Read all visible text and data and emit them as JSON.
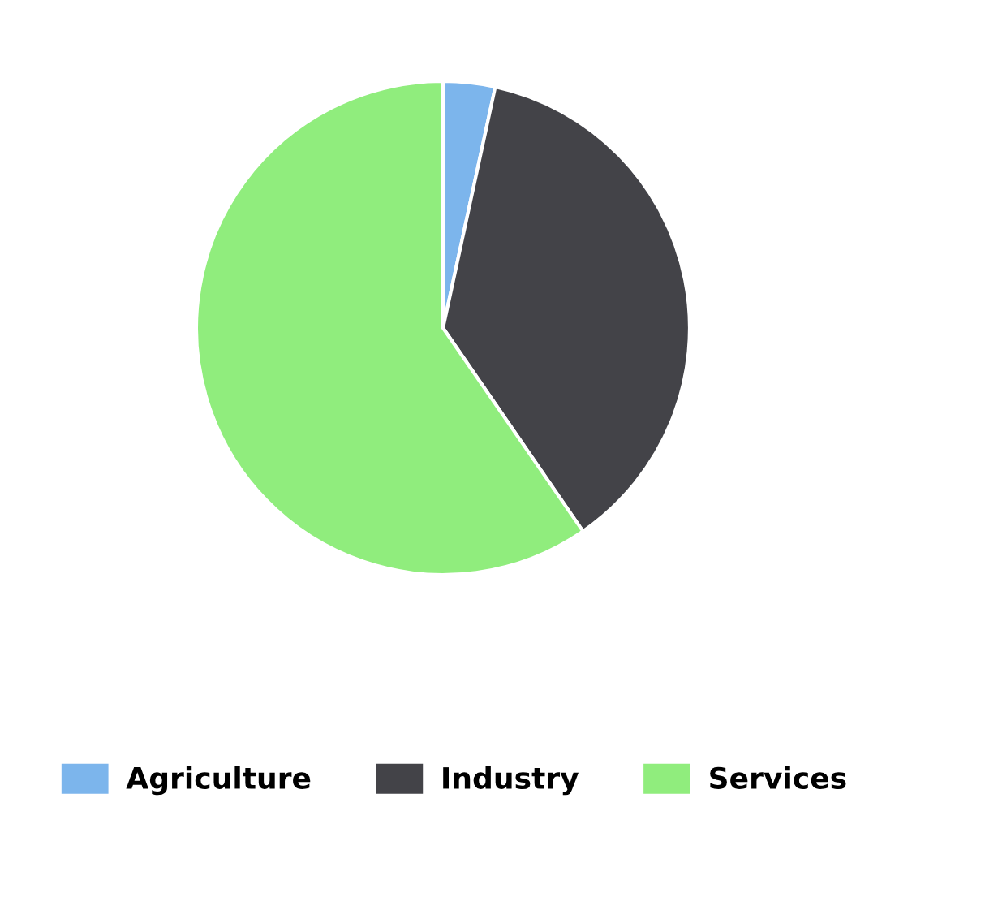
{
  "chart_data": {
    "type": "pie",
    "categories": [
      "Agriculture",
      "Industry",
      "Services"
    ],
    "values": [
      3.4,
      37.0,
      59.6
    ],
    "colors": [
      "#7cb5ec",
      "#434348",
      "#90ed7d"
    ],
    "legend": "bottom"
  }
}
